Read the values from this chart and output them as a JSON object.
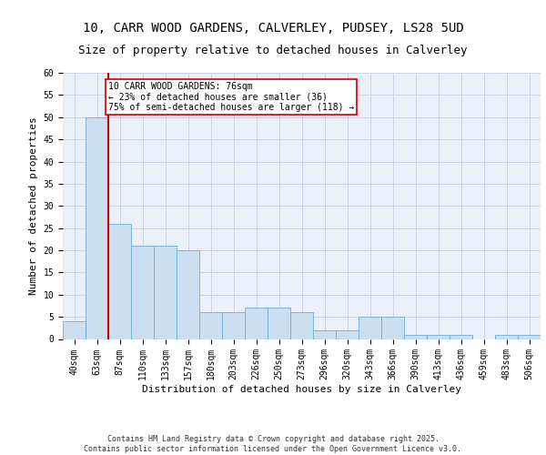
{
  "title1": "10, CARR WOOD GARDENS, CALVERLEY, PUDSEY, LS28 5UD",
  "title2": "Size of property relative to detached houses in Calverley",
  "xlabel": "Distribution of detached houses by size in Calverley",
  "ylabel": "Number of detached properties",
  "categories": [
    "40sqm",
    "63sqm",
    "87sqm",
    "110sqm",
    "133sqm",
    "157sqm",
    "180sqm",
    "203sqm",
    "226sqm",
    "250sqm",
    "273sqm",
    "296sqm",
    "320sqm",
    "343sqm",
    "366sqm",
    "390sqm",
    "413sqm",
    "436sqm",
    "459sqm",
    "483sqm",
    "506sqm"
  ],
  "values": [
    4,
    50,
    26,
    21,
    21,
    20,
    6,
    6,
    7,
    7,
    6,
    2,
    2,
    5,
    5,
    1,
    1,
    1,
    0,
    1,
    1
  ],
  "bar_color": "#ccdff0",
  "bar_edge_color": "#6baed6",
  "grid_color": "#c8d4e8",
  "background_color": "#eaeff8",
  "red_line_color": "#cc0000",
  "red_line_x": 1.5,
  "annotation_text": "10 CARR WOOD GARDENS: 76sqm\n← 23% of detached houses are smaller (36)\n75% of semi-detached houses are larger (118) →",
  "annotation_box_facecolor": "#ffffff",
  "annotation_box_edgecolor": "#cc0000",
  "ylim": [
    0,
    60
  ],
  "yticks": [
    0,
    5,
    10,
    15,
    20,
    25,
    30,
    35,
    40,
    45,
    50,
    55,
    60
  ],
  "footer_text": "Contains HM Land Registry data © Crown copyright and database right 2025.\nContains public sector information licensed under the Open Government Licence v3.0.",
  "title_fontsize": 10,
  "subtitle_fontsize": 9,
  "tick_fontsize": 7,
  "ylabel_fontsize": 8,
  "xlabel_fontsize": 8,
  "annotation_fontsize": 7,
  "footer_fontsize": 6
}
